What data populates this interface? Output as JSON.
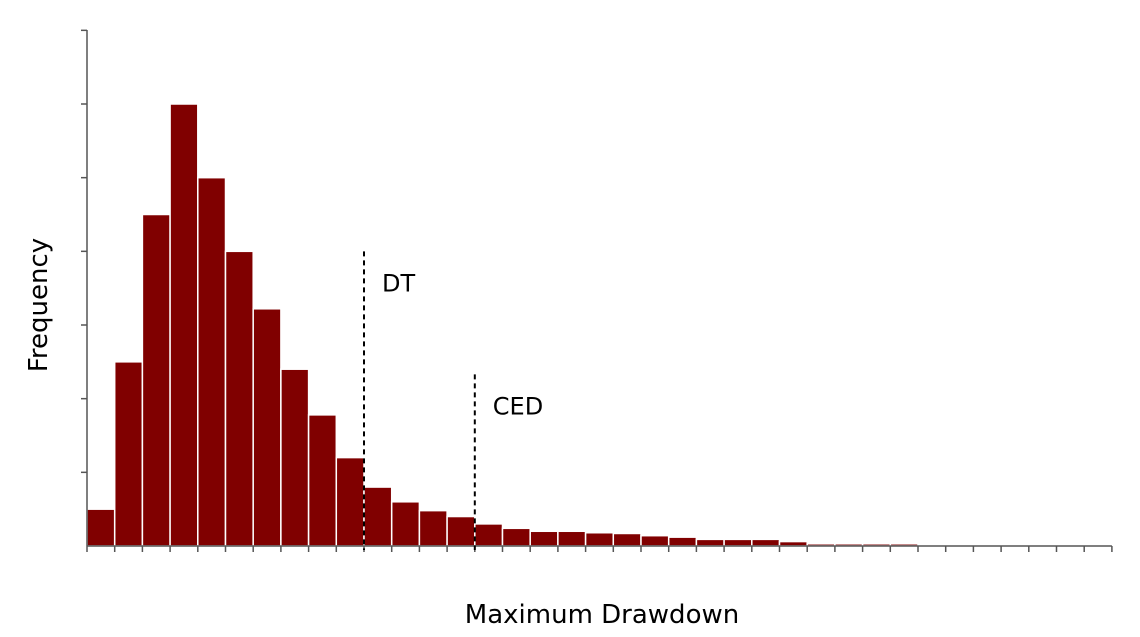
{
  "chart_data": {
    "type": "bar",
    "title": "",
    "xlabel": "Maximum Drawdown",
    "ylabel": "Frequency",
    "x_tick_labels": false,
    "y_tick_labels": false,
    "grid": false,
    "ylim": [
      0,
      7
    ],
    "bin_count": 37,
    "values": [
      0.5,
      2.5,
      4.5,
      6.0,
      5.0,
      4.0,
      3.22,
      2.4,
      1.78,
      1.2,
      0.8,
      0.6,
      0.48,
      0.4,
      0.3,
      0.24,
      0.2,
      0.2,
      0.18,
      0.17,
      0.14,
      0.12,
      0.09,
      0.09,
      0.09,
      0.06,
      0.03,
      0.03,
      0.03,
      0.03,
      0,
      0,
      0,
      0,
      0,
      0,
      0
    ],
    "bar_color": "#800000",
    "annotations": [
      {
        "label": "DT",
        "bin_boundary": 10,
        "style": "dashed",
        "height": 4.0
      },
      {
        "label": "CED",
        "bin_boundary": 14,
        "style": "dashed",
        "height": 2.33
      }
    ]
  }
}
